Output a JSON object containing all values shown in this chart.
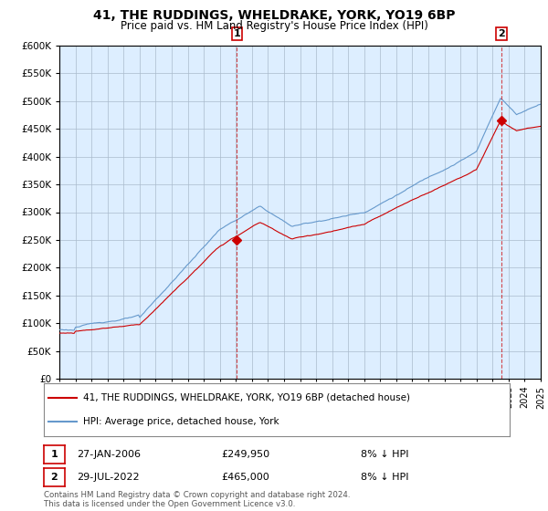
{
  "title": "41, THE RUDDINGS, WHELDRAKE, YORK, YO19 6BP",
  "subtitle": "Price paid vs. HM Land Registry's House Price Index (HPI)",
  "legend_entry1": "41, THE RUDDINGS, WHELDRAKE, YORK, YO19 6BP (detached house)",
  "legend_entry2": "HPI: Average price, detached house, York",
  "annotation1_date": "27-JAN-2006",
  "annotation1_price": "£249,950",
  "annotation1_note": "8% ↓ HPI",
  "annotation2_date": "29-JUL-2022",
  "annotation2_price": "£465,000",
  "annotation2_note": "8% ↓ HPI",
  "footer": "Contains HM Land Registry data © Crown copyright and database right 2024.\nThis data is licensed under the Open Government Licence v3.0.",
  "red_color": "#cc0000",
  "blue_color": "#6699cc",
  "bg_color": "#ddeeff",
  "grid_color": "#aabbcc",
  "ylim": [
    0,
    600000
  ],
  "yticks": [
    0,
    50000,
    100000,
    150000,
    200000,
    250000,
    300000,
    350000,
    400000,
    450000,
    500000,
    550000,
    600000
  ],
  "year_start": 1995,
  "year_end": 2025,
  "vline1_year": 2006.07,
  "vline2_year": 2022.57,
  "sale1_year": 2006.07,
  "sale1_value": 249950,
  "sale2_year": 2022.57,
  "sale2_value": 465000
}
